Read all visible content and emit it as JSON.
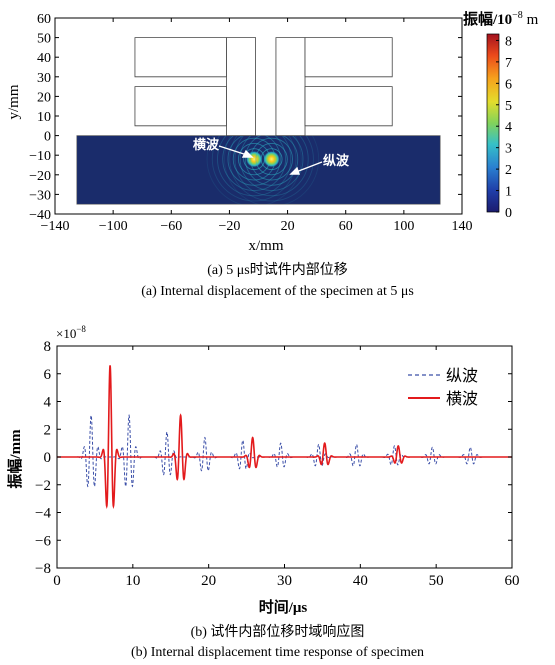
{
  "figure_a": {
    "caption_cn": "(a) 5 μs时试件内部位移",
    "caption_en": "(a) Internal displacement of the specimen at 5 μs",
    "xlabel": "x/mm",
    "ylabel": "y/mm",
    "annotations": {
      "shear": "横波",
      "longitudinal": "纵波"
    },
    "colorbar": {
      "label_base": "振幅/10",
      "label_exp": "−8",
      "label_unit": " m",
      "ticks": [
        "0",
        "1",
        "2",
        "3",
        "4",
        "5",
        "6",
        "7",
        "8"
      ]
    },
    "colors": {
      "background": "#1a2c6b",
      "low": "#131f5e",
      "wave": "#2fb6c8",
      "hot": "#f4c51b"
    }
  },
  "figure_b": {
    "caption_cn": "(b) 试件内部位移时域响应图",
    "caption_en": "(b) Internal displacement time response of specimen",
    "multiplier_base": "×10",
    "multiplier_exp": "−8"
  },
  "chart_data": [
    {
      "type": "heatmap",
      "x_ticks": [
        -140,
        -100,
        -60,
        -20,
        20,
        60,
        100,
        140
      ],
      "x_tick_labels": [
        "−140",
        "−100",
        "−60",
        "−20",
        "20",
        "60",
        "100",
        "140"
      ],
      "y_ticks": [
        -40,
        -30,
        -20,
        -10,
        0,
        10,
        20,
        30,
        40,
        50,
        60
      ],
      "y_tick_labels": [
        "−40",
        "−30",
        "−20",
        "−10",
        "0",
        "10",
        "20",
        "30",
        "40",
        "50",
        "60"
      ],
      "xlim": [
        -140,
        140
      ],
      "ylim": [
        -40,
        60
      ],
      "clim": [
        0,
        8.3
      ],
      "shapes": [
        {
          "x": [
            -85,
            -22,
            -22,
            -85
          ],
          "y": [
            30,
            30,
            50,
            50
          ]
        },
        {
          "x": [
            -85,
            -22,
            -22,
            -85
          ],
          "y": [
            5,
            5,
            25,
            25
          ]
        },
        {
          "x": [
            -22,
            -22,
            -2,
            -2
          ],
          "y": [
            0,
            50,
            50,
            0
          ]
        },
        {
          "x": [
            12,
            12,
            32,
            32
          ],
          "y": [
            0,
            50,
            50,
            0
          ]
        },
        {
          "x": [
            32,
            92,
            92,
            32
          ],
          "y": [
            30,
            30,
            50,
            50
          ]
        },
        {
          "x": [
            32,
            92,
            92,
            32
          ],
          "y": [
            5,
            5,
            25,
            25
          ]
        }
      ],
      "plate": {
        "x": [
          -125,
          125
        ],
        "y": [
          -35,
          0
        ]
      },
      "sources": [
        {
          "x": -3,
          "y": -12,
          "amplitude": 8
        },
        {
          "x": 9,
          "y": -12,
          "amplitude": 8
        }
      ]
    },
    {
      "type": "line",
      "xlabel": "时间/μs",
      "ylabel": "振幅/mm",
      "xlim": [
        0,
        60
      ],
      "ylim": [
        -8,
        8
      ],
      "x_ticks": [
        0,
        10,
        20,
        30,
        40,
        50,
        60
      ],
      "y_ticks": [
        -8,
        -6,
        -4,
        -2,
        0,
        2,
        4,
        6,
        8
      ],
      "y_tick_labels": [
        "−8",
        "−6",
        "−4",
        "−2",
        "0",
        "2",
        "4",
        "6",
        "8"
      ],
      "legend_position": "top-right",
      "series": [
        {
          "name": "纵波",
          "color": "#3b4fa8",
          "dash": "dashed",
          "packets": [
            {
              "t": 4.5,
              "amplitude": 3.0
            },
            {
              "t": 9.5,
              "amplitude": 3.0
            },
            {
              "t": 14.5,
              "amplitude": 1.8
            },
            {
              "t": 19.5,
              "amplitude": 1.4
            },
            {
              "t": 24.5,
              "amplitude": 1.2
            },
            {
              "t": 29.5,
              "amplitude": 1.0
            },
            {
              "t": 34.5,
              "amplitude": 0.9
            },
            {
              "t": 39.5,
              "amplitude": 0.9
            },
            {
              "t": 44.5,
              "amplitude": 0.8
            },
            {
              "t": 49.5,
              "amplitude": 0.7
            },
            {
              "t": 54.5,
              "amplitude": 0.7
            }
          ]
        },
        {
          "name": "横波",
          "color": "#e31a1c",
          "dash": "solid",
          "packets": [
            {
              "t": 7.0,
              "amplitude": 6.6
            },
            {
              "t": 16.3,
              "amplitude": 3.0
            },
            {
              "t": 25.8,
              "amplitude": 1.4
            },
            {
              "t": 35.3,
              "amplitude": 1.0
            },
            {
              "t": 45.0,
              "amplitude": 0.8
            }
          ]
        }
      ]
    }
  ]
}
